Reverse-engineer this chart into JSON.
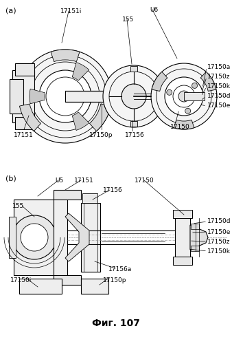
{
  "title": "Фиг. 107",
  "bg_color": "#ffffff",
  "line_color": "#000000",
  "gray_light": "#c8c8c8",
  "gray_mid": "#a0a0a0",
  "label_fontsize": 6.5,
  "panel_a_label": "(a)",
  "panel_b_label": "(b)"
}
